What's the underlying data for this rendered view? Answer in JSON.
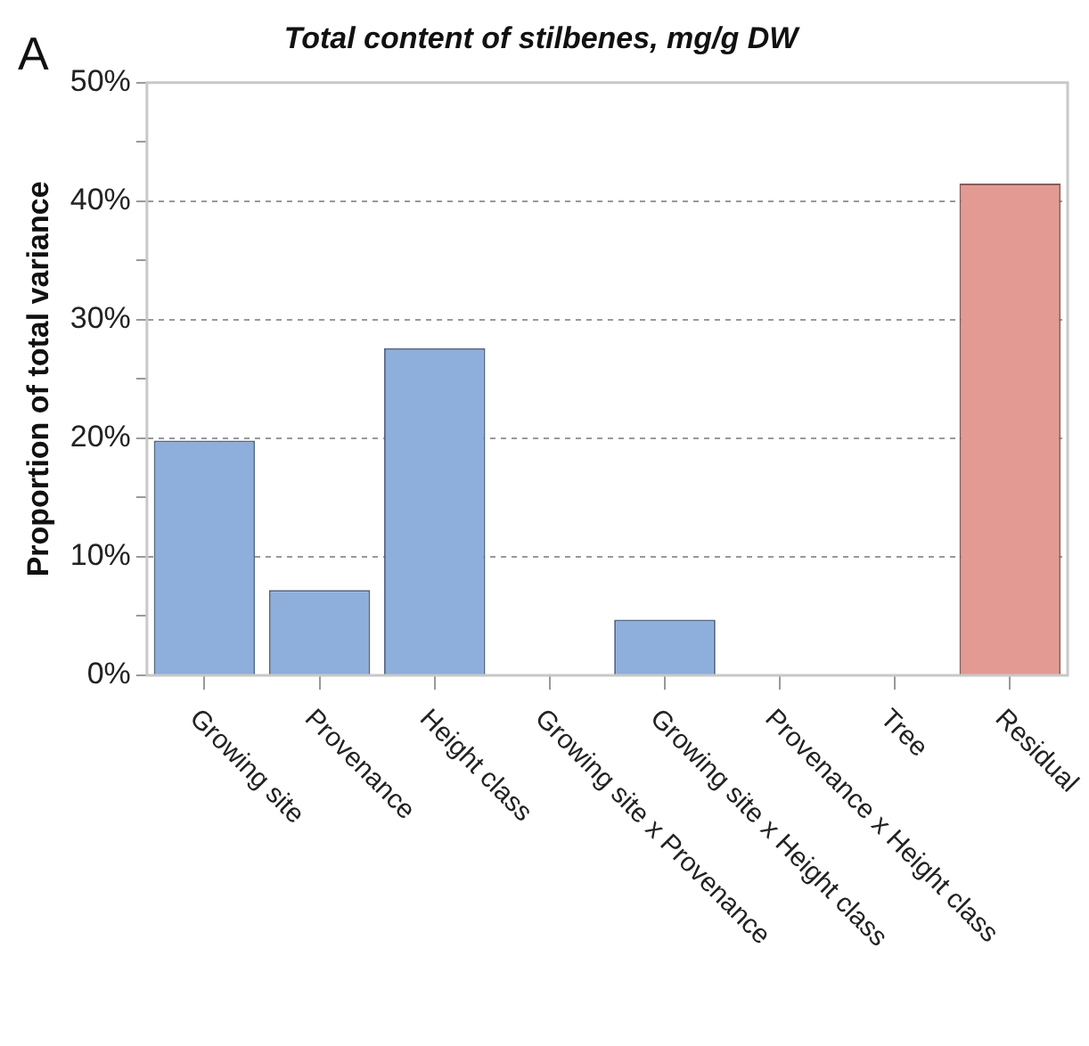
{
  "chart_data": {
    "type": "bar",
    "title": "Total content of stilbenes, mg/g DW",
    "ylabel": "Proportion of total variance",
    "annotations": [
      "A"
    ],
    "categories": [
      "Growing site",
      "Provenance",
      "Height class",
      "Growing site x Provenance",
      "Growing site x Height class",
      "Provenance x Height class",
      "Tree",
      "Residual"
    ],
    "values": [
      19.8,
      7.2,
      27.6,
      0,
      4.7,
      0,
      0,
      41.5
    ],
    "colors": [
      "#8eaedb",
      "#8eaedb",
      "#8eaedb",
      "#8eaedb",
      "#8eaedb",
      "#8eaedb",
      "#8eaedb",
      "#e39a93"
    ],
    "ylim": [
      0,
      50
    ],
    "yticks": [
      {
        "value": 0,
        "label": "0%"
      },
      {
        "value": 5,
        "label": null
      },
      {
        "value": 10,
        "label": "10%"
      },
      {
        "value": 15,
        "label": null
      },
      {
        "value": 20,
        "label": "20%"
      },
      {
        "value": 25,
        "label": null
      },
      {
        "value": 30,
        "label": "30%"
      },
      {
        "value": 35,
        "label": null
      },
      {
        "value": 40,
        "label": "40%"
      },
      {
        "value": 45,
        "label": null
      },
      {
        "value": 50,
        "label": "50%"
      }
    ],
    "grid": "y",
    "legend": false
  }
}
